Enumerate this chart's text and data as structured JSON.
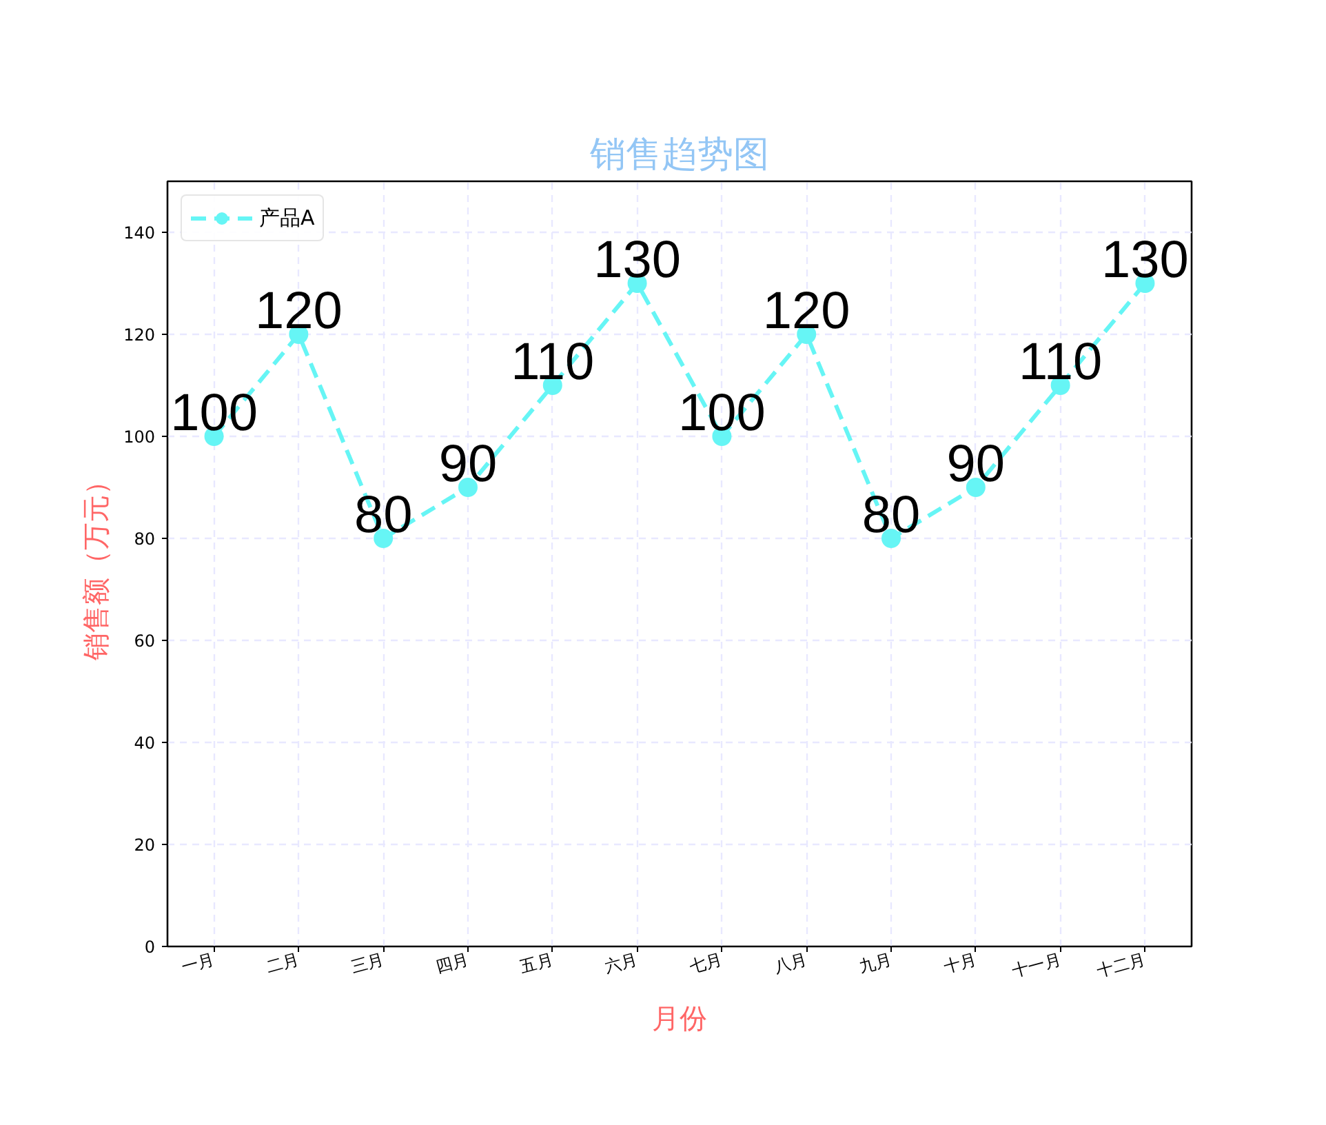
{
  "chart_data": {
    "type": "line",
    "title": "销售趋势图",
    "xlabel": "月份",
    "ylabel": "销售额（万元）",
    "categories": [
      "一月",
      "二月",
      "三月",
      "四月",
      "五月",
      "六月",
      "七月",
      "八月",
      "九月",
      "十月",
      "十一月",
      "十二月"
    ],
    "series": [
      {
        "name": "产品A",
        "color": "#66f5f5",
        "values": [
          100,
          120,
          80,
          90,
          110,
          130,
          100,
          120,
          80,
          90,
          110,
          130
        ]
      }
    ],
    "ylim": [
      0,
      150
    ],
    "yticks": [
      0,
      20,
      40,
      60,
      80,
      100,
      120,
      140
    ],
    "grid": true,
    "legend": "top left",
    "marker": "circle",
    "line_style": "dashed",
    "data_labels": true
  }
}
